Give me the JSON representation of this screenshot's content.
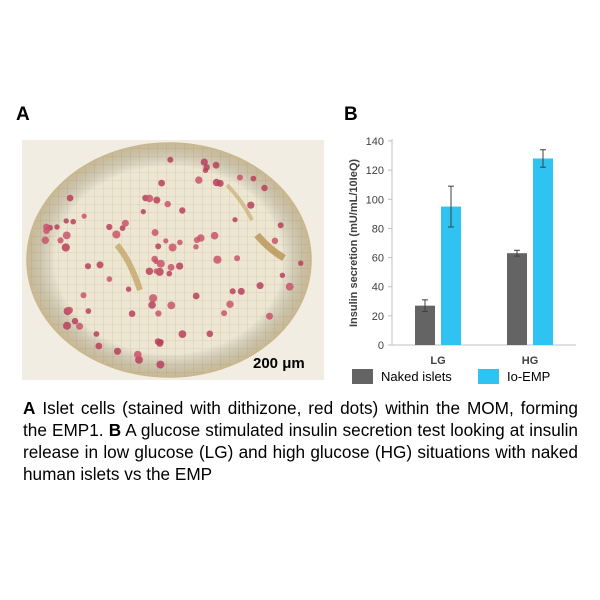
{
  "panel_a": {
    "label": "A",
    "scale_bar_text": "200 μm"
  },
  "panel_b": {
    "label": "B"
  },
  "colors": {
    "naked": "#646464",
    "emp": "#2ec3f0",
    "axis": "#bfbfbf"
  },
  "chart_data": {
    "type": "bar",
    "categories": [
      "LG",
      "HG"
    ],
    "series": [
      {
        "name": "Naked islets",
        "values": [
          27,
          63
        ],
        "errors": [
          4,
          2
        ]
      },
      {
        "name": "Io-EMP",
        "values": [
          95,
          128
        ],
        "errors": [
          14,
          6
        ]
      }
    ],
    "ylabel": "Insulin secretion (mU/mL/10IeQ)",
    "ylim": [
      0,
      140
    ],
    "yticks": [
      "0",
      "20",
      "40",
      "60",
      "80",
      "100",
      "120",
      "140"
    ],
    "grid": false,
    "legend": "bottom"
  },
  "caption": {
    "a_label": "A",
    "a_text": " Islet cells (stained with dithizone, red dots) within the MOM, forming the EMP1. ",
    "b_label": "B",
    "b_text": " A glucose stimulated insulin secretion test looking at insulin release in low glucose (LG) and high glucose (HG) situations with naked human islets vs the EMP"
  }
}
